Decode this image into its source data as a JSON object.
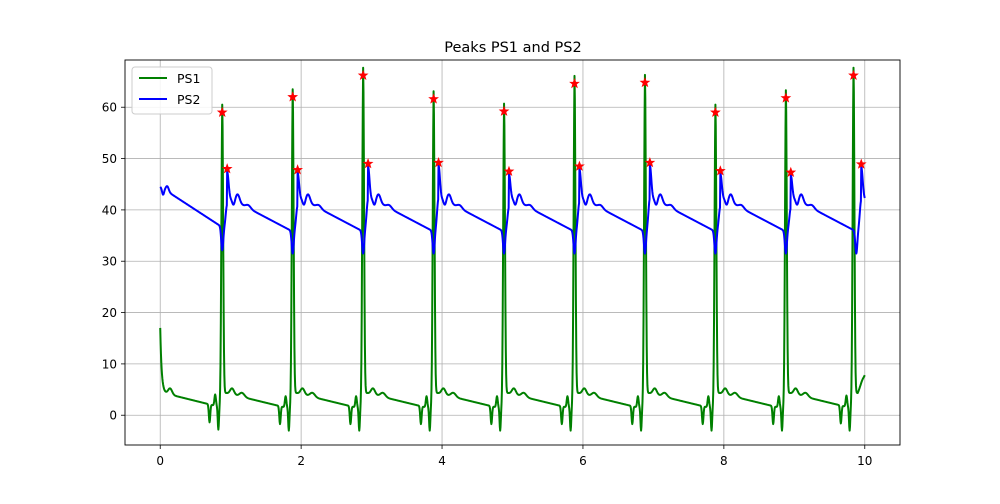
{
  "chart_data": {
    "type": "line",
    "title": "Peaks PS1 and PS2",
    "xlabel": "",
    "ylabel": "",
    "xlim": [
      -0.5,
      10.5
    ],
    "ylim": [
      -5.8,
      69.2
    ],
    "xticks": [
      0,
      2,
      4,
      6,
      8,
      10
    ],
    "xtick_labels": [
      "0",
      "2",
      "4",
      "6",
      "8",
      "10"
    ],
    "yticks": [
      0,
      10,
      20,
      30,
      40,
      50,
      60
    ],
    "ytick_labels": [
      "0",
      "10",
      "20",
      "30",
      "40",
      "50",
      "60"
    ],
    "grid": true,
    "legend_position": "top-left",
    "series": [
      {
        "name": "PS1",
        "color": "#008000",
        "beats": [
          {
            "t": 0.88,
            "peak": 59.0
          },
          {
            "t": 1.88,
            "peak": 62.0
          },
          {
            "t": 2.88,
            "peak": 66.2
          },
          {
            "t": 3.88,
            "peak": 61.6
          },
          {
            "t": 4.88,
            "peak": 59.2
          },
          {
            "t": 5.88,
            "peak": 64.6
          },
          {
            "t": 6.88,
            "peak": 64.8
          },
          {
            "t": 7.88,
            "peak": 59.0
          },
          {
            "t": 8.88,
            "peak": 61.8
          },
          {
            "t": 9.84,
            "peak": 66.2
          }
        ],
        "start_value": 17.5,
        "end_value": 7.8
      },
      {
        "name": "PS2",
        "color": "#0000ff",
        "beats": [
          {
            "t": 0.95,
            "peak": 48.0
          },
          {
            "t": 1.95,
            "peak": 47.8
          },
          {
            "t": 2.95,
            "peak": 49.0
          },
          {
            "t": 3.95,
            "peak": 49.2
          },
          {
            "t": 4.95,
            "peak": 47.5
          },
          {
            "t": 5.95,
            "peak": 48.5
          },
          {
            "t": 6.95,
            "peak": 49.2
          },
          {
            "t": 7.95,
            "peak": 47.6
          },
          {
            "t": 8.95,
            "peak": 47.3
          },
          {
            "t": 9.95,
            "peak": 48.9
          }
        ],
        "start_value": 44.5,
        "end_value": 48.9
      }
    ],
    "peak_marker": {
      "symbol": "star",
      "color": "#ff0000"
    },
    "x_range": [
      0,
      10
    ]
  }
}
